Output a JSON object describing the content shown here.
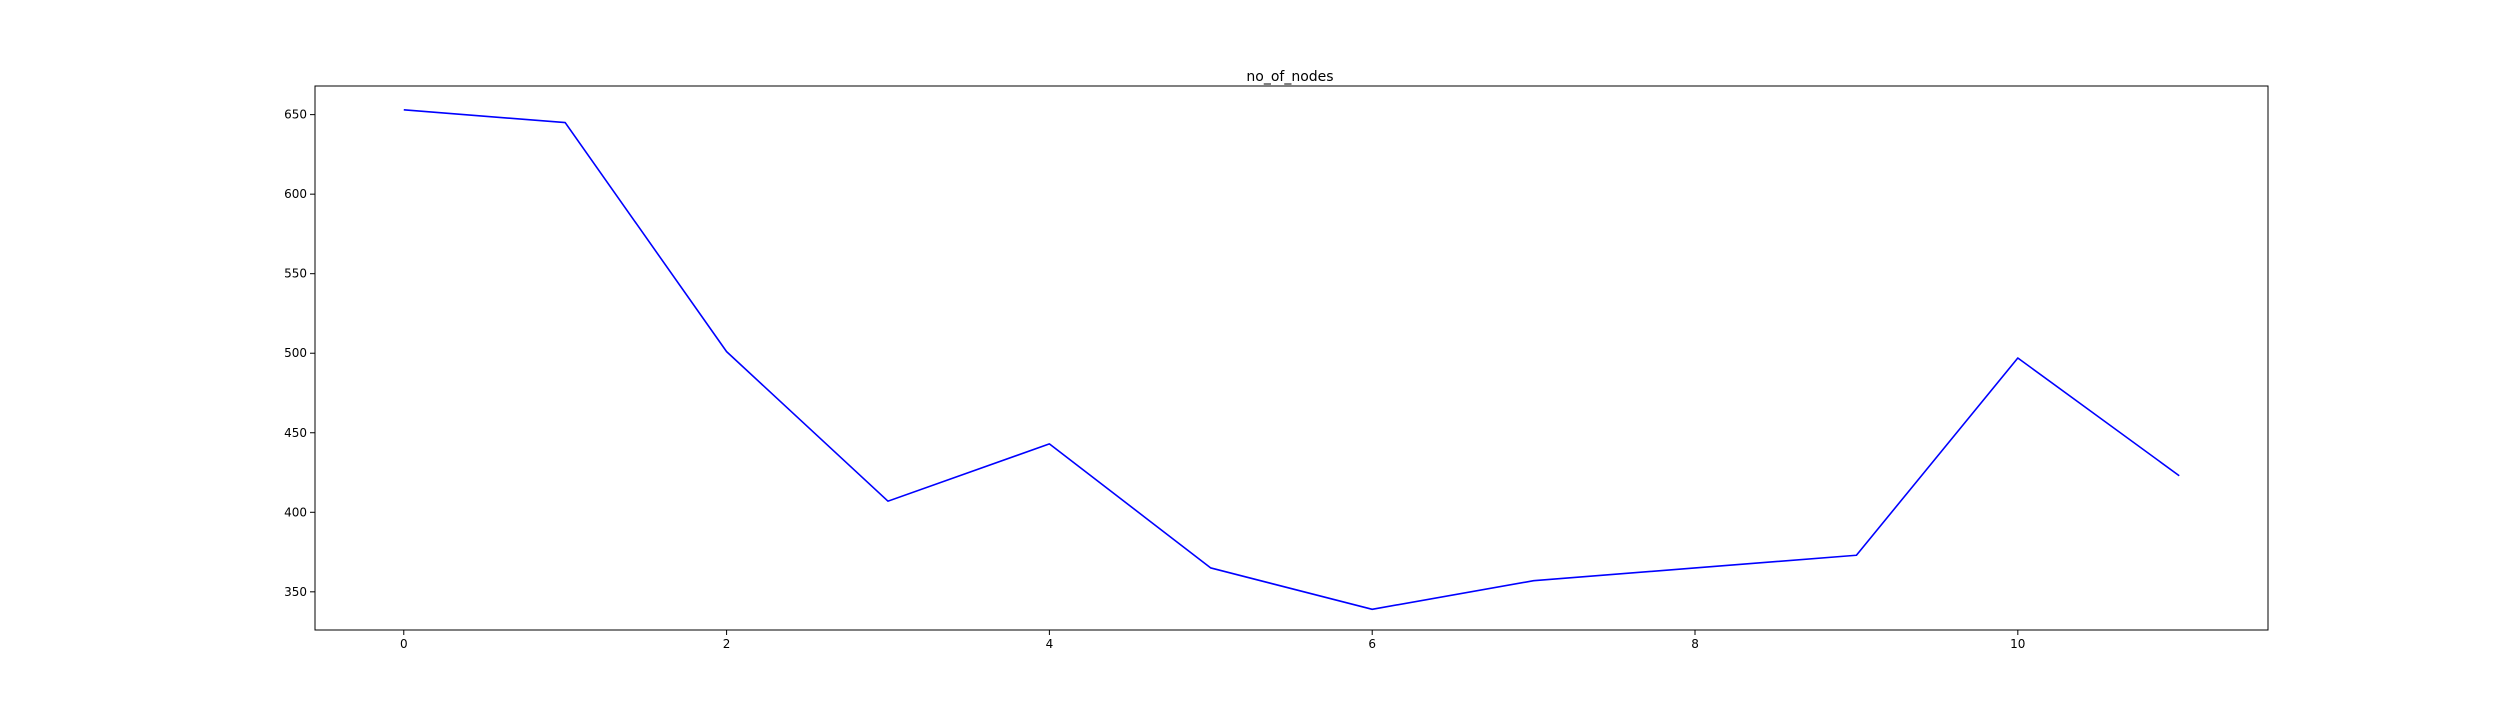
{
  "chart_data": {
    "type": "line",
    "title": "no_of_nodes",
    "xlabel": "",
    "ylabel": "",
    "x": [
      0,
      1,
      2,
      3,
      4,
      5,
      6,
      7,
      8,
      9,
      10,
      11
    ],
    "series": [
      {
        "values": [
          653,
          645,
          501,
          407,
          443,
          365,
          339,
          357,
          365,
          373,
          497,
          423
        ],
        "color": "#0000ff"
      }
    ],
    "xlim": [
      -0.55,
      11.55
    ],
    "ylim": [
      326,
      668
    ],
    "xticks": [
      0,
      2,
      4,
      6,
      8,
      10
    ],
    "yticks": [
      350,
      400,
      450,
      500,
      550,
      600,
      650
    ],
    "grid": false,
    "legend": "none"
  }
}
